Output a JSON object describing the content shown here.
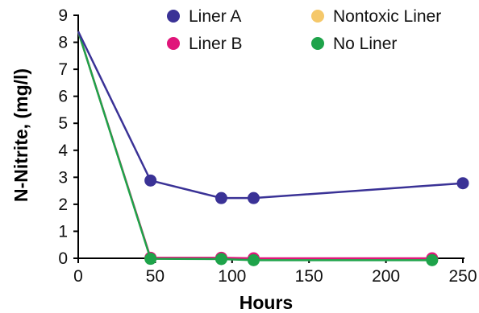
{
  "chart_data": {
    "type": "line",
    "title": "",
    "xlabel": "Hours",
    "ylabel": "N-Nitrite, (mg/l)",
    "xlim": [
      0,
      250
    ],
    "ylim": [
      0,
      9
    ],
    "xticks": [
      0,
      50,
      100,
      150,
      200,
      250
    ],
    "yticks": [
      0,
      1,
      2,
      3,
      4,
      5,
      6,
      7,
      8,
      9
    ],
    "grid": false,
    "legend_position": "top-right",
    "series": [
      {
        "name": "Liner A",
        "color": "#3a3296",
        "x": [
          0,
          47,
          93,
          114,
          250
        ],
        "y": [
          8.4,
          2.88,
          2.23,
          2.23,
          2.78
        ]
      },
      {
        "name": "Liner B",
        "color": "#e0157a",
        "x": [
          0,
          47,
          93,
          114,
          230
        ],
        "y": [
          8.4,
          0.02,
          0.02,
          0.0,
          0.0
        ]
      },
      {
        "name": "Nontoxic Liner",
        "color": "#f5c86a",
        "x": [
          0,
          47,
          93,
          114,
          230
        ],
        "y": [
          8.4,
          0.0,
          0.0,
          -0.05,
          -0.05
        ]
      },
      {
        "name": "No Liner",
        "color": "#1ea34a",
        "x": [
          0,
          47,
          93,
          114,
          230
        ],
        "y": [
          8.4,
          -0.02,
          -0.03,
          -0.07,
          -0.07
        ]
      }
    ],
    "legend_order": [
      "Liner A",
      "Nontoxic Liner",
      "Liner B",
      "No Liner"
    ]
  }
}
